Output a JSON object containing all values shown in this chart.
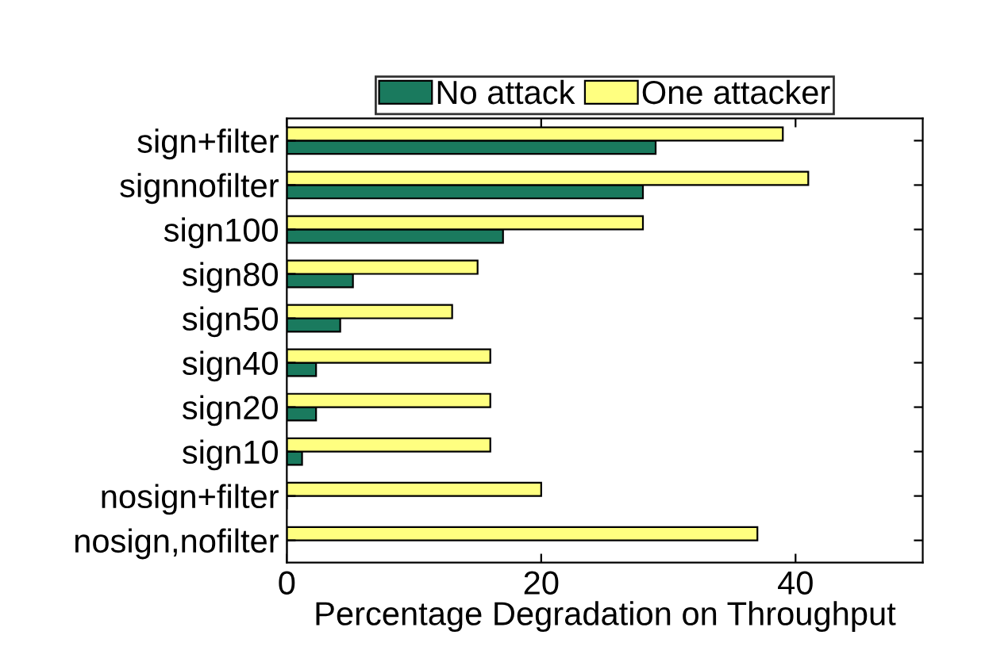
{
  "chart_data": {
    "type": "bar",
    "orientation": "horizontal",
    "xlabel": "Percentage Degradation on Throughput",
    "categories": [
      "sign+filter",
      "signnofilter",
      "sign100",
      "sign80",
      "sign50",
      "sign40",
      "sign20",
      "sign10",
      "nosign+filter",
      "nosign,nofilter"
    ],
    "series": [
      {
        "name": "No attack",
        "color": "#1a7a5e",
        "values": [
          29,
          28,
          17,
          5.2,
          4.2,
          2.3,
          2.3,
          1.2,
          0,
          0
        ]
      },
      {
        "name": "One attacker",
        "color": "#ffff80",
        "values": [
          39,
          41,
          28,
          15,
          13,
          16,
          16,
          16,
          20,
          37
        ]
      }
    ],
    "xlim": [
      0,
      50
    ],
    "xticks": [
      0,
      20,
      40
    ],
    "grid": false,
    "legend": "top"
  }
}
